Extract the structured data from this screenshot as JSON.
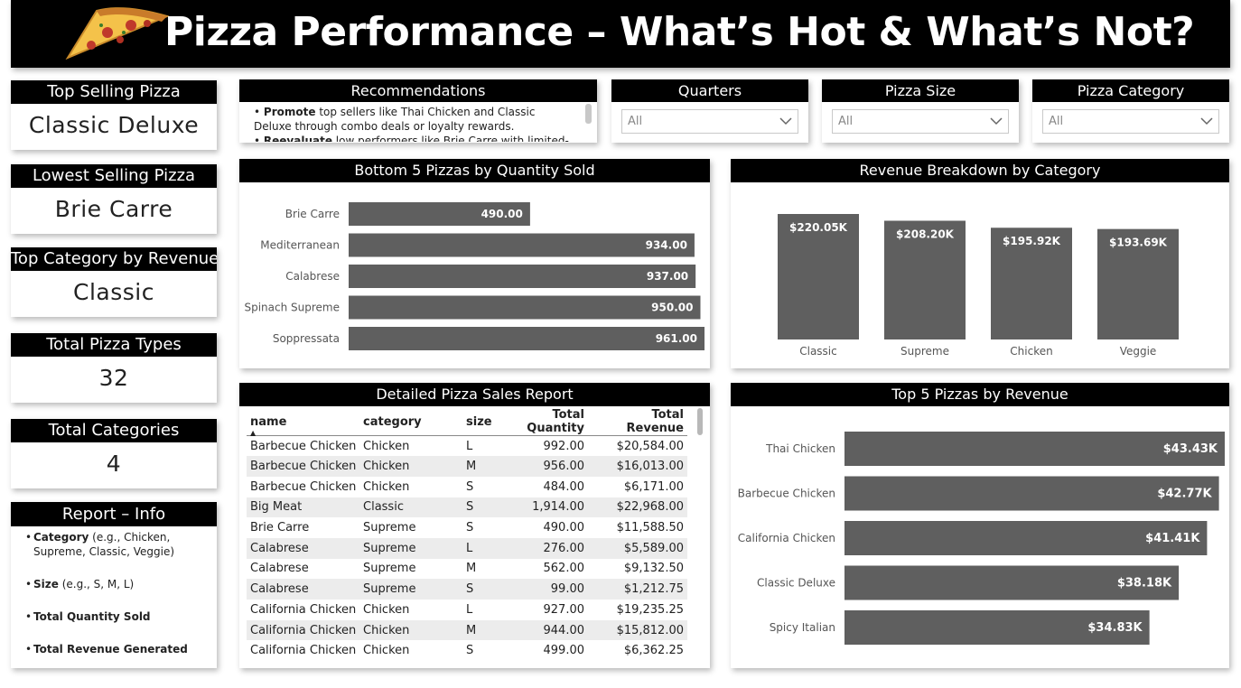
{
  "banner": {
    "title": "Pizza Performance – What’s Hot & What’s Not?",
    "icon": "pizza-slice-icon"
  },
  "kpis": {
    "top_selling": {
      "label": "Top Selling Pizza",
      "value": "Classic Deluxe"
    },
    "lowest_selling": {
      "label": "Lowest Selling Pizza",
      "value": "Brie Carre"
    },
    "top_category": {
      "label": "Top Category by Revenue",
      "value": "Classic"
    },
    "pizza_types": {
      "label": "Total Pizza Types",
      "value": "32"
    },
    "categories": {
      "label": "Total Categories",
      "value": "4"
    }
  },
  "info": {
    "title": "Report – Info",
    "items": [
      {
        "bold": "Category",
        "rest": " (e.g., Chicken, Supreme, Classic, Veggie)"
      },
      {
        "bold": "Size",
        "rest": " (e.g., S, M, L)"
      },
      {
        "bold": "Total Quantity Sold",
        "rest": ""
      },
      {
        "bold": "Total Revenue Generated",
        "rest": ""
      }
    ]
  },
  "recommendations": {
    "title": "Recommendations",
    "lines": [
      {
        "bold": "Promote",
        "rest": " top sellers like Thai Chicken and Classic Deluxe through combo deals or loyalty rewards."
      },
      {
        "bold": "Reevaluate",
        "rest": " low performers like Brie Carre with limited-time offers."
      }
    ]
  },
  "slicers": [
    {
      "label": "Quarters",
      "value": "All"
    },
    {
      "label": "Pizza Size",
      "value": "All"
    },
    {
      "label": "Pizza Category",
      "value": "All"
    }
  ],
  "chart_data": [
    {
      "type": "bar",
      "orientation": "horizontal",
      "title": "Bottom 5 Pizzas by Quantity Sold",
      "categories": [
        "Brie Carre",
        "Mediterranean",
        "Calabrese",
        "Spinach Supreme",
        "Soppressata"
      ],
      "values": [
        490,
        934,
        937,
        950,
        961
      ],
      "labels": [
        "490.00",
        "934.00",
        "937.00",
        "950.00",
        "961.00"
      ],
      "xlim": [
        0,
        961
      ],
      "color": "#5f5f5f"
    },
    {
      "type": "bar",
      "orientation": "vertical",
      "title": "Revenue Breakdown by Category",
      "categories": [
        "Classic",
        "Supreme",
        "Chicken",
        "Veggie"
      ],
      "values": [
        220.05,
        208.2,
        195.92,
        193.69
      ],
      "labels": [
        "$220.05K",
        "$208.20K",
        "$195.92K",
        "$193.69K"
      ],
      "ylim": [
        0,
        220.05
      ],
      "color": "#5f5f5f"
    },
    {
      "type": "bar",
      "orientation": "horizontal",
      "title": "Top 5 Pizzas by Revenue",
      "categories": [
        "Thai Chicken",
        "Barbecue Chicken",
        "California Chicken",
        "Classic Deluxe",
        "Spicy Italian"
      ],
      "values": [
        43.43,
        42.77,
        41.41,
        38.18,
        34.83
      ],
      "labels": [
        "$43.43K",
        "$42.77K",
        "$41.41K",
        "$38.18K",
        "$34.83K"
      ],
      "xlim": [
        0,
        43.43
      ],
      "color": "#5f5f5f"
    }
  ],
  "table": {
    "title": "Detailed Pizza Sales Report",
    "columns": [
      "name",
      "category",
      "size",
      "Total Quantity",
      "Total Revenue"
    ],
    "rows": [
      [
        "Barbecue Chicken",
        "Chicken",
        "L",
        "992.00",
        "$20,584.00"
      ],
      [
        "Barbecue Chicken",
        "Chicken",
        "M",
        "956.00",
        "$16,013.00"
      ],
      [
        "Barbecue Chicken",
        "Chicken",
        "S",
        "484.00",
        "$6,171.00"
      ],
      [
        "Big Meat",
        "Classic",
        "S",
        "1,914.00",
        "$22,968.00"
      ],
      [
        "Brie Carre",
        "Supreme",
        "S",
        "490.00",
        "$11,588.50"
      ],
      [
        "Calabrese",
        "Supreme",
        "L",
        "276.00",
        "$5,589.00"
      ],
      [
        "Calabrese",
        "Supreme",
        "M",
        "562.00",
        "$9,132.50"
      ],
      [
        "Calabrese",
        "Supreme",
        "S",
        "99.00",
        "$1,212.75"
      ],
      [
        "California Chicken",
        "Chicken",
        "L",
        "927.00",
        "$19,235.25"
      ],
      [
        "California Chicken",
        "Chicken",
        "M",
        "944.00",
        "$15,812.00"
      ],
      [
        "California Chicken",
        "Chicken",
        "S",
        "499.00",
        "$6,362.25"
      ]
    ]
  }
}
